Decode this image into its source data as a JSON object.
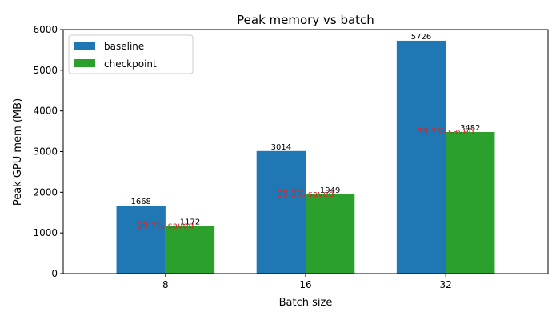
{
  "chart_data": {
    "type": "bar",
    "title": "Peak memory vs batch",
    "xlabel": "Batch size",
    "ylabel": "Peak GPU mem (MB)",
    "categories": [
      "8",
      "16",
      "32"
    ],
    "ylim": [
      0,
      6000
    ],
    "yticks": [
      "0",
      "1000",
      "2000",
      "3000",
      "4000",
      "5000",
      "6000"
    ],
    "legend_position": "top-left",
    "series": [
      {
        "name": "baseline",
        "color": "#1f77b4",
        "values": [
          1668,
          3014,
          5726
        ],
        "labels": [
          "1668",
          "3014",
          "5726"
        ]
      },
      {
        "name": "checkpoint",
        "color": "#2ca02c",
        "values": [
          1172,
          1949,
          3482
        ],
        "labels": [
          "1172",
          "1949",
          "3482"
        ]
      }
    ],
    "annotations": {
      "color": "#d62728",
      "items": [
        "29.7% saved",
        "35.3% saved",
        "39.2% saved"
      ]
    }
  }
}
